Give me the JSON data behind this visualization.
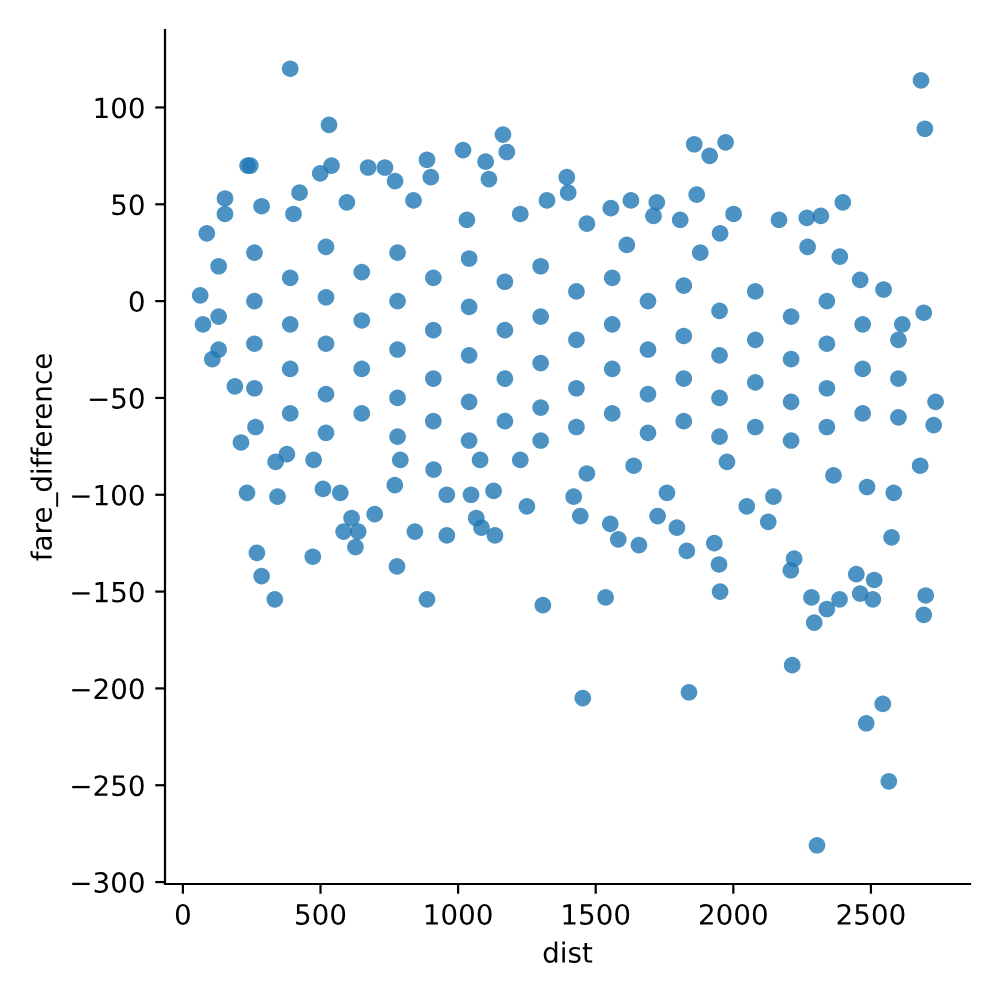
{
  "chart_data": {
    "type": "scatter",
    "xlabel": "dist",
    "ylabel": "fare_difference",
    "series": [
      {
        "color": "#1f77b4",
        "x": [
          390,
          2682,
          2696,
          531,
          1163,
          1177,
          235,
          245,
          540,
          499,
          673,
          734,
          771,
          887,
          901,
          1018,
          1100,
          1112,
          1858,
          1914,
          1972,
          1395,
          1400,
          1323,
          1555,
          1628,
          1722,
          1867,
          2398,
          153,
          153,
          286,
          424,
          2166,
          2267,
          2318,
          2270,
          2387,
          2001,
          1952,
          1880,
          1807,
          1710,
          1613,
          1468,
          1226,
          1032,
          838,
          596,
          402,
          87,
          63,
          73,
          107,
          189,
          211,
          233,
          269,
          286,
          334,
          344,
          337,
          264,
          472,
          509,
          572,
          613,
          584,
          637,
          627,
          697,
          778,
          770,
          843,
          887,
          959,
          959,
          1047,
          1066,
          1085,
          1134,
          1129,
          1250,
          1308,
          1420,
          1444,
          1453,
          1536,
          1553,
          1582,
          1657,
          1725,
          1795,
          1831,
          1839,
          1931,
          1948,
          1952,
          2049,
          2127,
          2209,
          2221,
          2214,
          2284,
          2294,
          2304,
          2340,
          2386,
          2447,
          2461,
          2483,
          2512,
          2507,
          2543,
          2565,
          2575,
          2699,
          2692,
          2679,
          2728,
          2735,
          2692,
          2614,
          2546,
          2461,
          1977,
          2146,
          2364,
          2486,
          2583,
          1759,
          1638,
          1468,
          1226,
          1080,
          911,
          790,
          475,
          378,
          130,
          130,
          130,
          260,
          260,
          260,
          260,
          390,
          390,
          390,
          390,
          520,
          520,
          520,
          520,
          520,
          650,
          650,
          650,
          650,
          780,
          780,
          780,
          780,
          780,
          910,
          910,
          910,
          910,
          1040,
          1040,
          1040,
          1040,
          1040,
          1170,
          1170,
          1170,
          1170,
          1300,
          1300,
          1300,
          1300,
          1300,
          1430,
          1430,
          1430,
          1430,
          1560,
          1560,
          1560,
          1560,
          1690,
          1690,
          1690,
          1690,
          1820,
          1820,
          1820,
          1820,
          1950,
          1950,
          1950,
          1950,
          2080,
          2080,
          2080,
          2080,
          2210,
          2210,
          2210,
          2210,
          2340,
          2340,
          2340,
          2340,
          2470,
          2470,
          2470,
          2600,
          2600,
          2600
        ],
        "values": [
          120,
          114,
          89,
          91,
          86,
          77,
          70,
          70,
          70,
          66,
          69,
          69,
          62,
          73,
          64,
          78,
          72,
          63,
          81,
          75,
          82,
          64,
          56,
          52,
          48,
          52,
          51,
          55,
          51,
          53,
          45,
          49,
          56,
          42,
          43,
          44,
          28,
          23,
          45,
          35,
          25,
          42,
          44,
          29,
          40,
          45,
          42,
          52,
          51,
          45,
          35,
          3,
          -12,
          -30,
          -44,
          -73,
          -99,
          -130,
          -142,
          -154,
          -101,
          -83,
          -65,
          -132,
          -97,
          -99,
          -112,
          -119,
          -119,
          -127,
          -110,
          -137,
          -95,
          -119,
          -154,
          -121,
          -100,
          -100,
          -112,
          -117,
          -121,
          -98,
          -106,
          -157,
          -101,
          -111,
          -205,
          -153,
          -115,
          -123,
          -126,
          -111,
          -117,
          -129,
          -202,
          -125,
          -136,
          -150,
          -106,
          -114,
          -139,
          -133,
          -188,
          -153,
          -166,
          -281,
          -159,
          -154,
          -141,
          -151,
          -218,
          -144,
          -154,
          -208,
          -248,
          -122,
          -152,
          -162,
          -85,
          -64,
          -52,
          -6,
          -12,
          6,
          11,
          -83,
          -101,
          -90,
          -96,
          -99,
          -99,
          -85,
          -89,
          -82,
          -82,
          -87,
          -82,
          -82,
          -79,
          18,
          -8,
          -25,
          25,
          0,
          -22,
          -45,
          12,
          -12,
          -35,
          -58,
          28,
          2,
          -22,
          -48,
          -68,
          15,
          -10,
          -35,
          -58,
          25,
          0,
          -25,
          -50,
          -70,
          12,
          -15,
          -40,
          -62,
          22,
          -3,
          -28,
          -52,
          -72,
          10,
          -15,
          -40,
          -62,
          18,
          -8,
          -32,
          -55,
          -72,
          5,
          -20,
          -45,
          -65,
          12,
          -12,
          -35,
          -58,
          0,
          -25,
          -48,
          -68,
          8,
          -18,
          -40,
          -62,
          -5,
          -28,
          -50,
          -70,
          5,
          -20,
          -42,
          -65,
          -8,
          -30,
          -52,
          -72,
          0,
          -22,
          -45,
          -65,
          -12,
          -35,
          -58,
          -20,
          -40,
          -60
        ]
      }
    ],
    "xlim": [
      -65,
      2860
    ],
    "ylim": [
      -301,
      140
    ],
    "xticks": [
      0,
      500,
      1000,
      1500,
      2000,
      2500
    ],
    "yticks": [
      {
        "value": -300,
        "label": "−300"
      },
      {
        "value": -250,
        "label": "−250"
      },
      {
        "value": -200,
        "label": "−200"
      },
      {
        "value": -150,
        "label": "−150"
      },
      {
        "value": -100,
        "label": "−100"
      },
      {
        "value": -50,
        "label": "−50"
      },
      0,
      50,
      100
    ],
    "grid": false,
    "marker": "circle"
  }
}
